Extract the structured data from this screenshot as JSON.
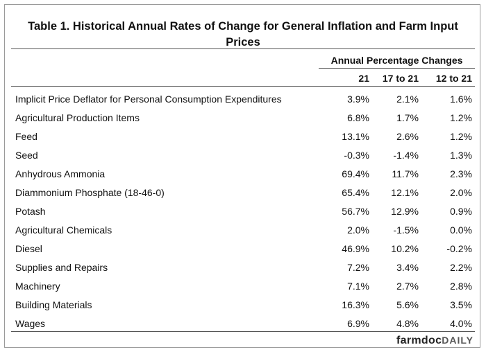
{
  "table": {
    "title_line1": "Table 1.  Historical Annual Rates of Change for General Inflation and Farm Input",
    "title_line2": "Prices",
    "group_header": "Annual Percentage Changes",
    "columns": [
      "21",
      "17 to 21",
      "12 to 21"
    ],
    "rows": [
      {
        "label": "Implicit Price Deflator for Personal Consumption Expenditures",
        "v": [
          "3.9%",
          "2.1%",
          "1.6%"
        ]
      },
      {
        "label": "Agricultural Production Items",
        "v": [
          "6.8%",
          "1.7%",
          "1.2%"
        ]
      },
      {
        "label": "Feed",
        "v": [
          "13.1%",
          "2.6%",
          "1.2%"
        ]
      },
      {
        "label": "Seed",
        "v": [
          "-0.3%",
          "-1.4%",
          "1.3%"
        ]
      },
      {
        "label": "Anhydrous Ammonia",
        "v": [
          "69.4%",
          "11.7%",
          "2.3%"
        ]
      },
      {
        "label": "Diammonium Phosphate (18-46-0)",
        "v": [
          "65.4%",
          "12.1%",
          "2.0%"
        ]
      },
      {
        "label": "Potash",
        "v": [
          "56.7%",
          "12.9%",
          "0.9%"
        ]
      },
      {
        "label": "Agricultural Chemicals",
        "v": [
          "2.0%",
          "-1.5%",
          "0.0%"
        ]
      },
      {
        "label": "Diesel",
        "v": [
          "46.9%",
          "10.2%",
          "-0.2%"
        ]
      },
      {
        "label": "Supplies and Repairs",
        "v": [
          "7.2%",
          "3.4%",
          "2.2%"
        ]
      },
      {
        "label": "Machinery",
        "v": [
          "7.1%",
          "2.7%",
          "2.8%"
        ]
      },
      {
        "label": "Building Materials",
        "v": [
          "16.3%",
          "5.6%",
          "3.5%"
        ]
      },
      {
        "label": "Wages",
        "v": [
          "6.9%",
          "4.8%",
          "4.0%"
        ]
      }
    ]
  },
  "logo": {
    "part1": "farmdoc",
    "part2": "DAILY"
  }
}
